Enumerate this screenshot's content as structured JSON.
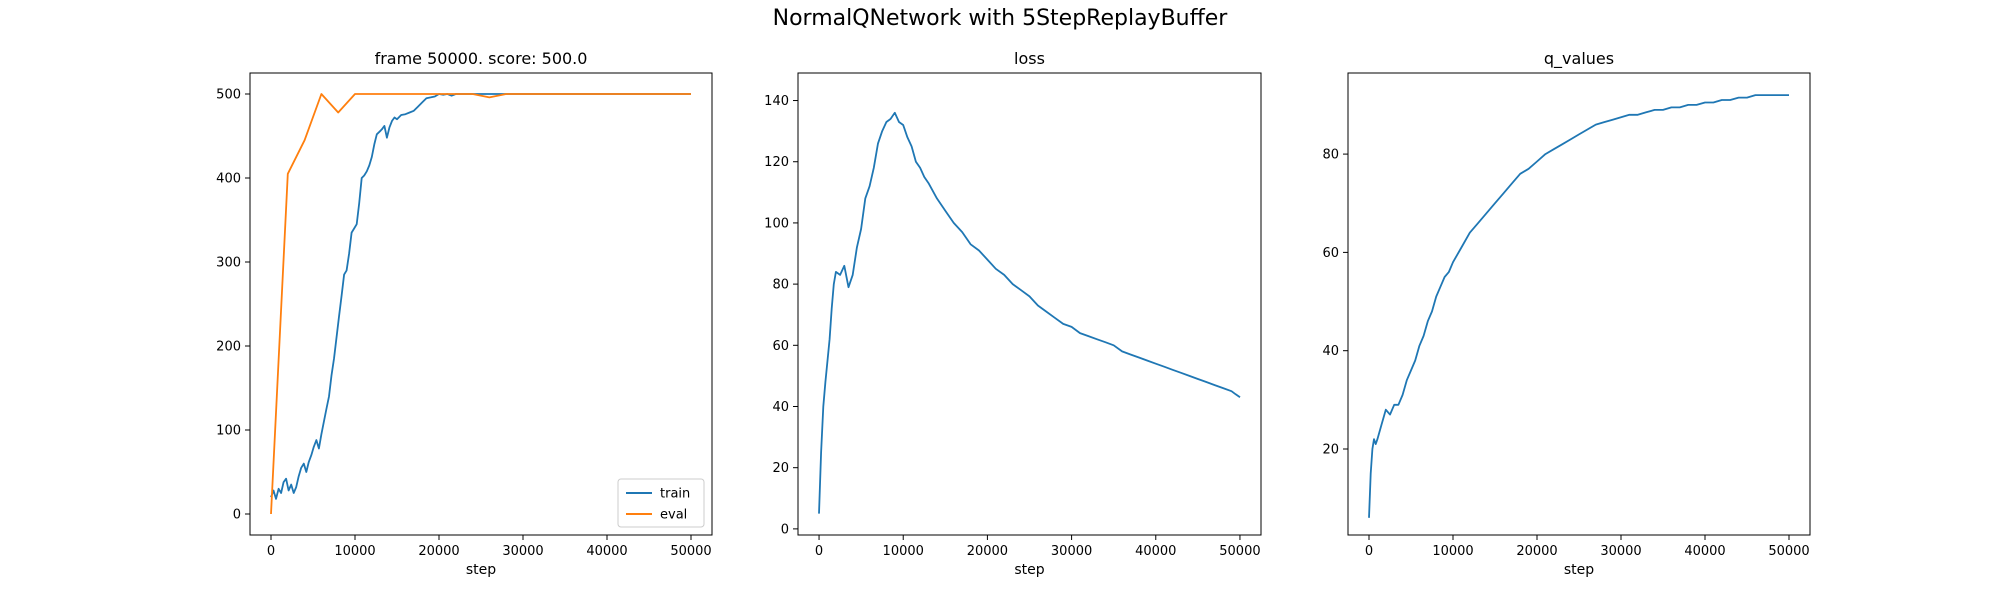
{
  "figure": {
    "title": "NormalQNetwork with 5StepReplayBuffer"
  },
  "chart_data": [
    {
      "type": "line",
      "title": "frame 50000. score: 500.0",
      "xlabel": "step",
      "ylabel": "",
      "xlim": [
        -2500,
        52500
      ],
      "ylim": [
        -25,
        525
      ],
      "xticks": [
        0,
        10000,
        20000,
        30000,
        40000,
        50000
      ],
      "yticks": [
        0,
        100,
        200,
        300,
        400,
        500
      ],
      "grid": false,
      "legend": "lower-right",
      "series": [
        {
          "name": "train",
          "color": "#1f77b4",
          "x": [
            0,
            300,
            600,
            900,
            1200,
            1500,
            1800,
            2100,
            2400,
            2700,
            3000,
            3300,
            3600,
            3900,
            4200,
            4500,
            4800,
            5100,
            5400,
            5700,
            6000,
            6300,
            6600,
            6900,
            7200,
            7500,
            7800,
            8100,
            8400,
            8700,
            9000,
            9300,
            9600,
            9900,
            10200,
            10500,
            10800,
            11100,
            11400,
            11700,
            12000,
            12300,
            12600,
            12900,
            13200,
            13500,
            13800,
            14100,
            14400,
            14700,
            15000,
            15500,
            16000,
            16500,
            17000,
            17500,
            18000,
            18500,
            19000,
            19500,
            20000,
            20500,
            21000,
            21500,
            22000,
            22500,
            23000,
            24000,
            25000,
            26000,
            27000,
            28000,
            30000,
            35000,
            40000,
            45000,
            50000
          ],
          "y": [
            20,
            28,
            18,
            30,
            25,
            38,
            42,
            28,
            35,
            25,
            32,
            45,
            55,
            60,
            50,
            62,
            70,
            80,
            88,
            78,
            95,
            110,
            125,
            140,
            165,
            185,
            210,
            235,
            260,
            285,
            290,
            310,
            335,
            340,
            345,
            370,
            400,
            403,
            408,
            415,
            425,
            440,
            452,
            455,
            458,
            462,
            448,
            460,
            468,
            472,
            470,
            475,
            476,
            478,
            480,
            485,
            490,
            495,
            496,
            497,
            500,
            499,
            500,
            498,
            500,
            500,
            500,
            500,
            500,
            500,
            500,
            500,
            500,
            500,
            500,
            500,
            500
          ]
        },
        {
          "name": "eval",
          "color": "#ff7f0e",
          "x": [
            0,
            2000,
            4000,
            6000,
            8000,
            10000,
            12000,
            14000,
            16000,
            18000,
            20000,
            22000,
            24000,
            26000,
            28000,
            30000,
            32000,
            34000,
            36000,
            38000,
            40000,
            42000,
            44000,
            46000,
            48000,
            50000
          ],
          "y": [
            0,
            405,
            445,
            500,
            478,
            500,
            500,
            500,
            500,
            500,
            500,
            500,
            500,
            496,
            500,
            500,
            500,
            500,
            500,
            500,
            500,
            500,
            500,
            500,
            500,
            500
          ]
        }
      ]
    },
    {
      "type": "line",
      "title": "loss",
      "xlabel": "step",
      "ylabel": "",
      "xlim": [
        -2500,
        52500
      ],
      "ylim": [
        -2,
        149
      ],
      "xticks": [
        0,
        10000,
        20000,
        30000,
        40000,
        50000
      ],
      "yticks": [
        0,
        20,
        40,
        60,
        80,
        100,
        120,
        140
      ],
      "grid": false,
      "legend": "none",
      "series": [
        {
          "name": "",
          "color": "#1f77b4",
          "x": [
            0,
            250,
            500,
            750,
            1000,
            1250,
            1500,
            1750,
            2000,
            2500,
            3000,
            3500,
            4000,
            4500,
            5000,
            5500,
            6000,
            6500,
            7000,
            7500,
            8000,
            8500,
            9000,
            9500,
            10000,
            10500,
            11000,
            11500,
            12000,
            12500,
            13000,
            14000,
            15000,
            16000,
            17000,
            18000,
            19000,
            20000,
            21000,
            22000,
            23000,
            24000,
            25000,
            26000,
            27000,
            28000,
            29000,
            30000,
            31000,
            32000,
            33000,
            34000,
            35000,
            36000,
            37000,
            38000,
            39000,
            40000,
            41000,
            42000,
            43000,
            44000,
            45000,
            46000,
            47000,
            48000,
            49000,
            49500,
            50000
          ],
          "y": [
            5,
            25,
            40,
            48,
            55,
            62,
            72,
            80,
            84,
            83,
            86,
            79,
            83,
            92,
            98,
            108,
            112,
            118,
            126,
            130,
            133,
            134,
            136,
            133,
            132,
            128,
            125,
            120,
            118,
            115,
            113,
            108,
            104,
            100,
            97,
            93,
            91,
            88,
            85,
            83,
            80,
            78,
            76,
            73,
            71,
            69,
            67,
            66,
            64,
            63,
            62,
            61,
            60,
            58,
            57,
            56,
            55,
            54,
            53,
            52,
            51,
            50,
            49,
            48,
            47,
            46,
            45,
            44,
            43
          ]
        }
      ]
    },
    {
      "type": "line",
      "title": "q_values",
      "xlabel": "step",
      "ylabel": "",
      "xlim": [
        -2500,
        52500
      ],
      "ylim": [
        2.5,
        96.5
      ],
      "xticks": [
        0,
        10000,
        20000,
        30000,
        40000,
        50000
      ],
      "yticks": [
        20,
        40,
        60,
        80
      ],
      "grid": false,
      "legend": "none",
      "series": [
        {
          "name": "",
          "color": "#1f77b4",
          "x": [
            0,
            200,
            400,
            600,
            800,
            1000,
            1500,
            2000,
            2500,
            3000,
            3500,
            4000,
            4500,
            5000,
            5500,
            6000,
            6500,
            7000,
            7500,
            8000,
            8500,
            9000,
            9500,
            10000,
            11000,
            12000,
            13000,
            14000,
            15000,
            16000,
            17000,
            18000,
            19000,
            20000,
            21000,
            22000,
            23000,
            24000,
            25000,
            26000,
            27000,
            28000,
            29000,
            30000,
            31000,
            32000,
            33000,
            34000,
            35000,
            36000,
            37000,
            38000,
            39000,
            40000,
            41000,
            42000,
            43000,
            44000,
            45000,
            46000,
            47000,
            48000,
            49000,
            50000
          ],
          "y": [
            6,
            15,
            20,
            22,
            21,
            22,
            25,
            28,
            27,
            29,
            29,
            31,
            34,
            36,
            38,
            41,
            43,
            46,
            48,
            51,
            53,
            55,
            56,
            58,
            61,
            64,
            66,
            68,
            70,
            72,
            74,
            76,
            77,
            78.5,
            80,
            81,
            82,
            83,
            84,
            85,
            86,
            86.5,
            87,
            87.5,
            88,
            88,
            88.5,
            89,
            89,
            89.5,
            89.5,
            90,
            90,
            90.5,
            90.5,
            91,
            91,
            91.5,
            91.5,
            92,
            92,
            92,
            92,
            92
          ]
        }
      ]
    }
  ]
}
